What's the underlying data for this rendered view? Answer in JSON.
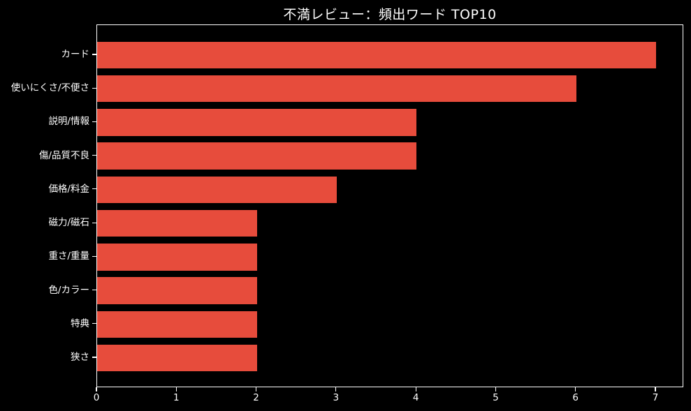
{
  "title": "不満レビュー：頻出ワード TOP10",
  "colors": {
    "background": "#000000",
    "bar": "#e74c3c",
    "text": "#ffffff",
    "axis": "#ffffff"
  },
  "chart_data": {
    "type": "bar",
    "orientation": "horizontal",
    "title": "不満レビュー：頻出ワード TOP10",
    "categories": [
      "カード",
      "使いにくさ/不便さ",
      "説明/情報",
      "傷/品質不良",
      "価格/料金",
      "磁力/磁石",
      "重さ/重量",
      "色/カラー",
      "特典",
      "狭さ"
    ],
    "values": [
      7,
      6,
      4,
      4,
      3,
      2,
      2,
      2,
      2,
      2
    ],
    "x_ticks": [
      "0",
      "1",
      "2",
      "3",
      "4",
      "5",
      "6",
      "7"
    ],
    "x_tick_values": [
      0,
      1,
      2,
      3,
      4,
      5,
      6,
      7
    ],
    "xlim": [
      0,
      7.35
    ],
    "xlabel": "",
    "ylabel": "",
    "grid": false,
    "legend": "none",
    "bar_color": "#e74c3c",
    "background_color": "#000000",
    "text_color": "#ffffff"
  }
}
